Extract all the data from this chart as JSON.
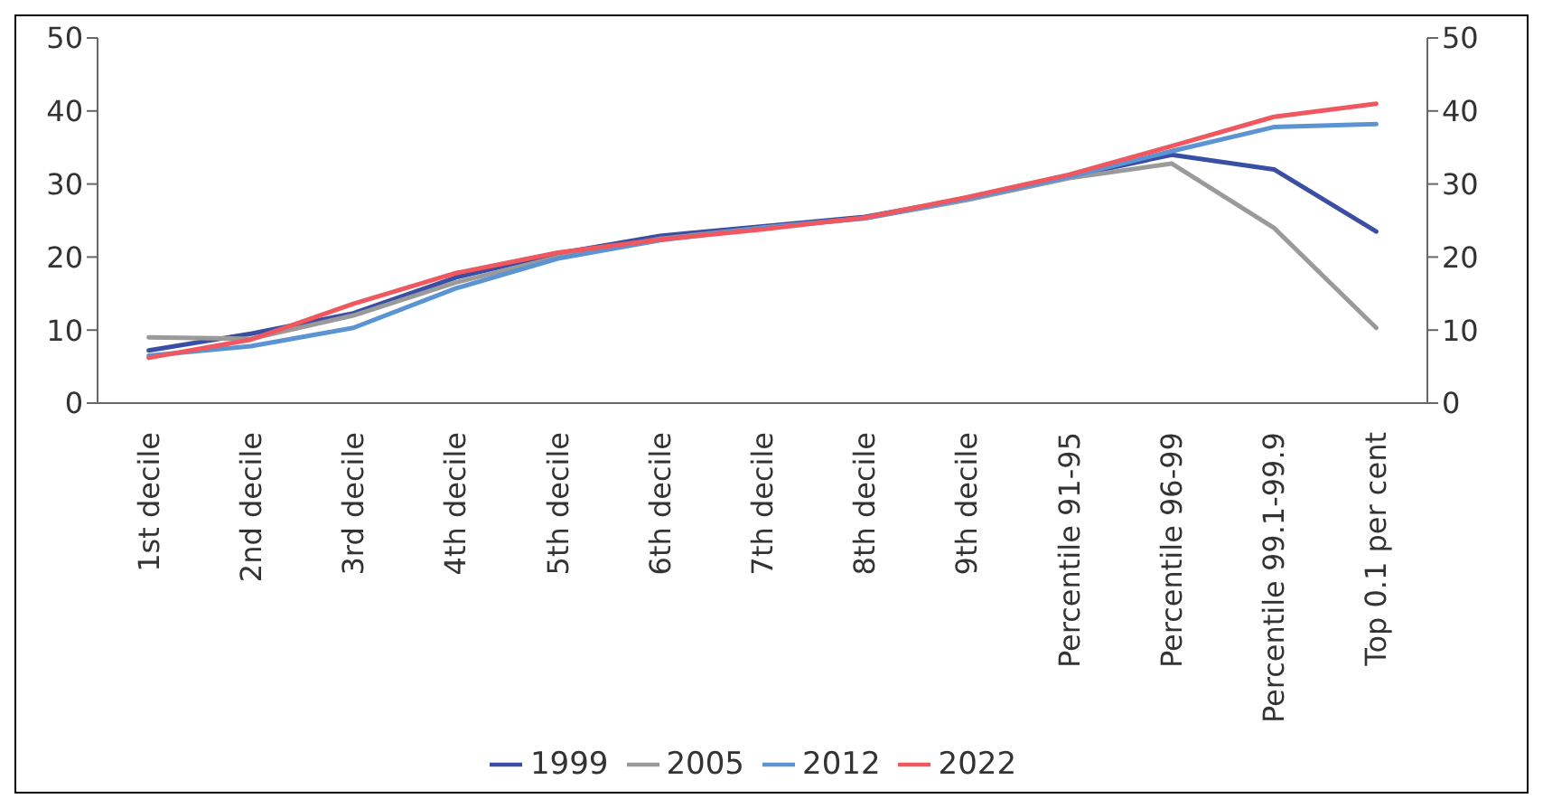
{
  "chart_data": {
    "type": "line",
    "categories": [
      "1st decile",
      "2nd decile",
      "3rd decile",
      "4th decile",
      "5th decile",
      "6th decile",
      "7th decile",
      "8th decile",
      "9th decile",
      "Percentile 91-95",
      "Percentile 96-99",
      "Percentile 99.1-99.9",
      "Top 0.1 per cent"
    ],
    "series": [
      {
        "name": "1999",
        "color": "#3a4fa3",
        "values": [
          7.2,
          9.5,
          12.3,
          17.2,
          20.5,
          22.9,
          24.2,
          25.5,
          28,
          31,
          34,
          32,
          23.5
        ]
      },
      {
        "name": "2005",
        "color": "#9a9a9a",
        "values": [
          9,
          8.8,
          12,
          16.5,
          20,
          22.5,
          24,
          25.3,
          27.8,
          30.8,
          32.8,
          24,
          10.3
        ]
      },
      {
        "name": "2012",
        "color": "#5b93d3",
        "values": [
          6.5,
          7.8,
          10.3,
          15.7,
          19.8,
          22.3,
          24,
          25.3,
          28,
          31,
          34.5,
          37.8,
          38.2
        ]
      },
      {
        "name": "2022",
        "color": "#f0575f",
        "values": [
          6.2,
          8.7,
          13.6,
          17.8,
          20.6,
          22.4,
          23.8,
          25.4,
          28.2,
          31.3,
          35.2,
          39.2,
          41
        ]
      }
    ],
    "ylim": [
      0,
      50
    ],
    "yticks": [
      0,
      10,
      20,
      30,
      40,
      50
    ],
    "y2lim": [
      0,
      50
    ],
    "y2ticks": [
      0,
      10,
      20,
      30,
      40,
      50
    ],
    "legend": "bottom",
    "marker": "none",
    "line_style": "solid"
  }
}
